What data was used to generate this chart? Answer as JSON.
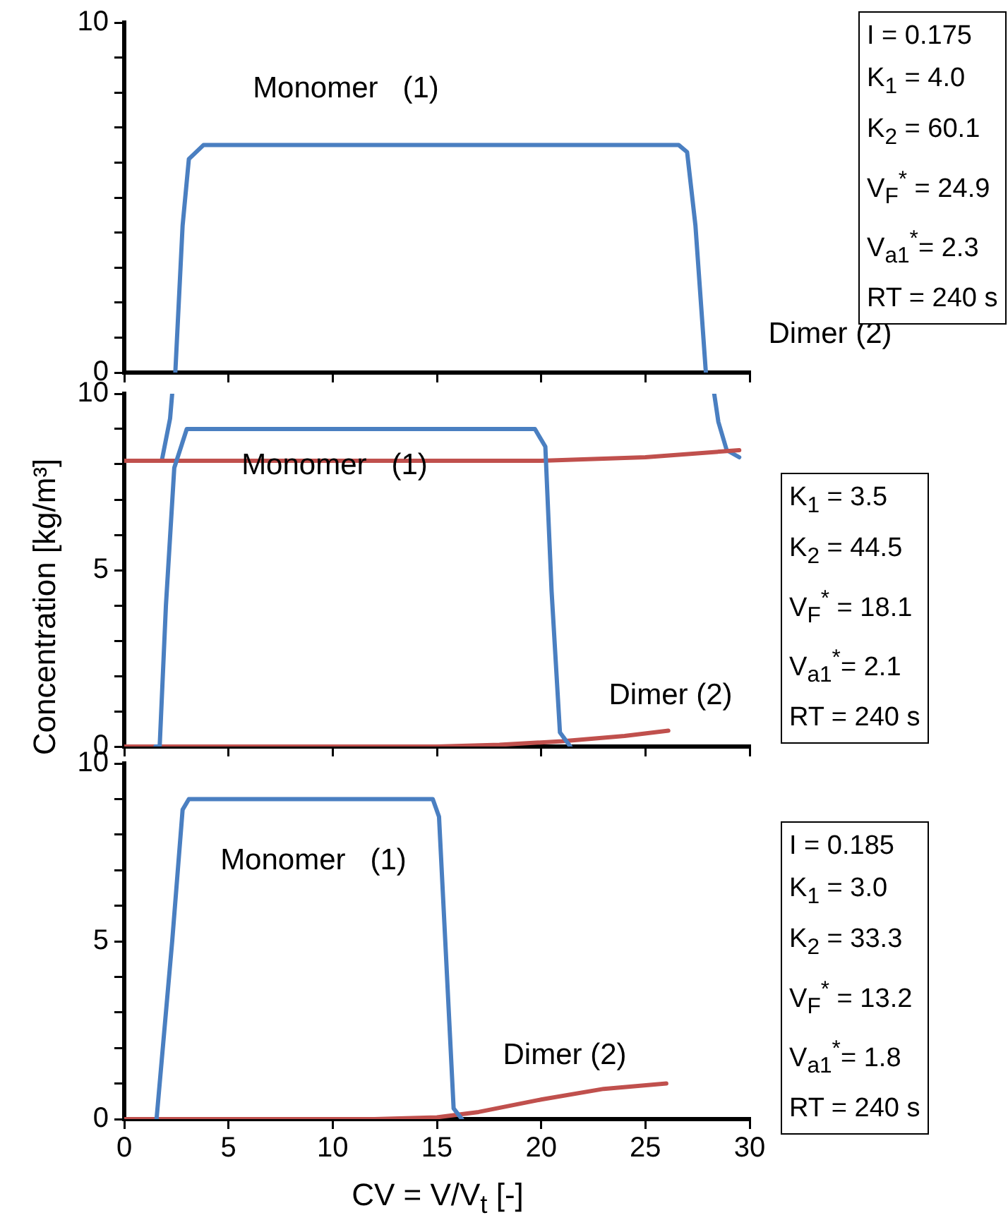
{
  "chart_data": [
    {
      "type": "line",
      "xlim": [
        0,
        30
      ],
      "xticks": [
        0,
        5,
        10,
        15,
        20,
        25,
        30
      ],
      "ylim": [
        0,
        10
      ],
      "yticks": [
        0,
        {
          "value": 1,
          "label": null
        },
        {
          "value": 2,
          "label": null
        },
        {
          "value": 3,
          "label": null
        },
        {
          "value": 4,
          "label": null
        },
        {
          "value": 5,
          "label": null
        },
        {
          "value": 6,
          "label": null
        },
        {
          "value": 7,
          "label": null
        },
        {
          "value": 8,
          "label": null
        },
        {
          "value": 9,
          "label": null
        },
        10
      ],
      "tick_labels": "y",
      "series": [
        {
          "color": "#4a7fc1",
          "x": [
            2.45,
            2.8,
            3.1,
            3.8,
            26.6,
            27.0,
            27.4,
            27.9
          ],
          "values": [
            0,
            4.2,
            6.1,
            6.5,
            6.5,
            6.3,
            4.2,
            0
          ]
        }
      ],
      "annotations": [
        "Monomer   (1)",
        "Dimer (2)",
        "I = 0.175",
        "K$_{1}$ = 4.0",
        "K$_{2}$ = 60.1",
        "V$_{F}$$^{*}$ = 24.9",
        "V$_{a1}$$^{*}$= 2.3",
        "RT = 240 s"
      ]
    },
    {
      "type": "line",
      "xlim": [
        0,
        30
      ],
      "xticks": [
        0,
        5,
        10,
        15,
        20,
        25,
        30
      ],
      "ylim": [
        0,
        10
      ],
      "yticks": [
        0,
        {
          "value": 1,
          "label": null
        },
        {
          "value": 2,
          "label": null
        },
        {
          "value": 3,
          "label": null
        },
        {
          "value": 4,
          "label": null
        },
        5,
        {
          "value": 6,
          "label": null
        },
        {
          "value": 7,
          "label": null
        },
        {
          "value": 8,
          "label": null
        },
        {
          "value": 9,
          "label": null
        },
        10
      ],
      "tick_labels": "y",
      "ylabel": "Concentration  [kg/m³]",
      "series": [
        {
          "color": "#4a7fc1",
          "x": [
            1.5,
            1.7,
            2.0,
            2.4,
            3.0,
            19.7,
            20.2,
            20.5,
            20.9,
            21.4
          ],
          "values": [
            0,
            0,
            4.0,
            7.9,
            9.0,
            9.0,
            8.5,
            4.4,
            0.4,
            0
          ]
        },
        {
          "color": "#c0504d",
          "x": [
            0,
            15,
            18,
            21,
            24,
            26.1
          ],
          "values": [
            0,
            0,
            0.05,
            0.15,
            0.3,
            0.45
          ]
        },
        {
          "color": "#c0504d",
          "x": [
            0,
            20,
            25,
            29.5
          ],
          "values": [
            8.1,
            8.1,
            8.2,
            8.4
          ]
        },
        {
          "color": "#4a7fc1",
          "x": [
            1.8,
            2.2,
            2.3,
            null,
            28.3,
            28.5,
            28.9,
            29.5
          ],
          "values": [
            8.1,
            9.3,
            10,
            null,
            10,
            9.2,
            8.4,
            8.2
          ]
        }
      ],
      "annotations": [
        "Monomer   (1)",
        "Dimer (2)",
        "K$_{1}$ = 3.5",
        "K$_{2}$ = 44.5",
        "V$_{F}$$^{*}$ = 18.1",
        "V$_{a1}$$^{*}$= 2.1",
        "RT = 240 s"
      ]
    },
    {
      "type": "line",
      "xlim": [
        0,
        30
      ],
      "xticks": [
        0,
        5,
        10,
        15,
        20,
        25,
        30
      ],
      "ylim": [
        0,
        10
      ],
      "yticks": [
        0,
        {
          "value": 1,
          "label": null
        },
        {
          "value": 2,
          "label": null
        },
        {
          "value": 3,
          "label": null
        },
        {
          "value": 4,
          "label": null
        },
        5,
        {
          "value": 6,
          "label": null
        },
        {
          "value": 7,
          "label": null
        },
        {
          "value": 8,
          "label": null
        },
        {
          "value": 9,
          "label": null
        },
        10
      ],
      "xlabel": "CV = V/V$_{t}$   [-]",
      "series": [
        {
          "color": "#4a7fc1",
          "x": [
            1.55,
            2.3,
            2.8,
            3.1,
            14.8,
            15.1,
            15.4,
            15.8,
            16.2
          ],
          "values": [
            0,
            5.0,
            8.7,
            9.0,
            9.0,
            8.5,
            5.0,
            0.3,
            0
          ]
        },
        {
          "color": "#c0504d",
          "x": [
            0,
            12,
            15,
            17,
            20,
            23,
            26
          ],
          "values": [
            0,
            0,
            0.05,
            0.2,
            0.55,
            0.85,
            1.0
          ]
        }
      ],
      "annotations": [
        "Monomer   (1)",
        "Dimer (2)",
        "I = 0.185",
        "K$_{1}$ = 3.0",
        "K$_{2}$ = 33.3",
        "V$_{F}$$^{*}$ = 13.2",
        "V$_{a1}$$^{*}$= 1.8",
        "RT = 240 s"
      ]
    }
  ]
}
